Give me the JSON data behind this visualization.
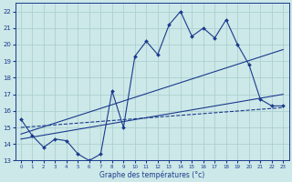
{
  "x": [
    0,
    1,
    2,
    3,
    4,
    5,
    6,
    7,
    8,
    9,
    10,
    11,
    12,
    13,
    14,
    15,
    16,
    17,
    18,
    19,
    20,
    21,
    22,
    23
  ],
  "temp_actual": [
    15.5,
    14.5,
    13.8,
    14.3,
    14.2,
    13.4,
    13.0,
    13.4,
    17.2,
    15.0,
    19.3,
    20.2,
    19.4,
    21.2,
    22.0,
    20.5,
    21.0,
    20.4,
    21.5,
    20.0,
    18.8,
    16.7,
    16.3,
    16.3
  ],
  "trend1_x": [
    0,
    23
  ],
  "trend1_y": [
    14.6,
    19.7
  ],
  "trend2_x": [
    0,
    23
  ],
  "trend2_y": [
    14.3,
    17.0
  ],
  "min_line_x": [
    0,
    23
  ],
  "min_line_y": [
    15.0,
    16.2
  ],
  "ylim": [
    13,
    22.5
  ],
  "xlim": [
    -0.5,
    23.5
  ],
  "yticks": [
    13,
    14,
    15,
    16,
    17,
    18,
    19,
    20,
    21,
    22
  ],
  "xticks": [
    0,
    1,
    2,
    3,
    4,
    5,
    6,
    7,
    8,
    9,
    10,
    11,
    12,
    13,
    14,
    15,
    16,
    17,
    18,
    19,
    20,
    21,
    22,
    23
  ],
  "xlabel": "Graphe des températures (°c)",
  "line_color": "#1a3a8c",
  "bg_color": "#cce8e8",
  "grid_color": "#a8cccc"
}
